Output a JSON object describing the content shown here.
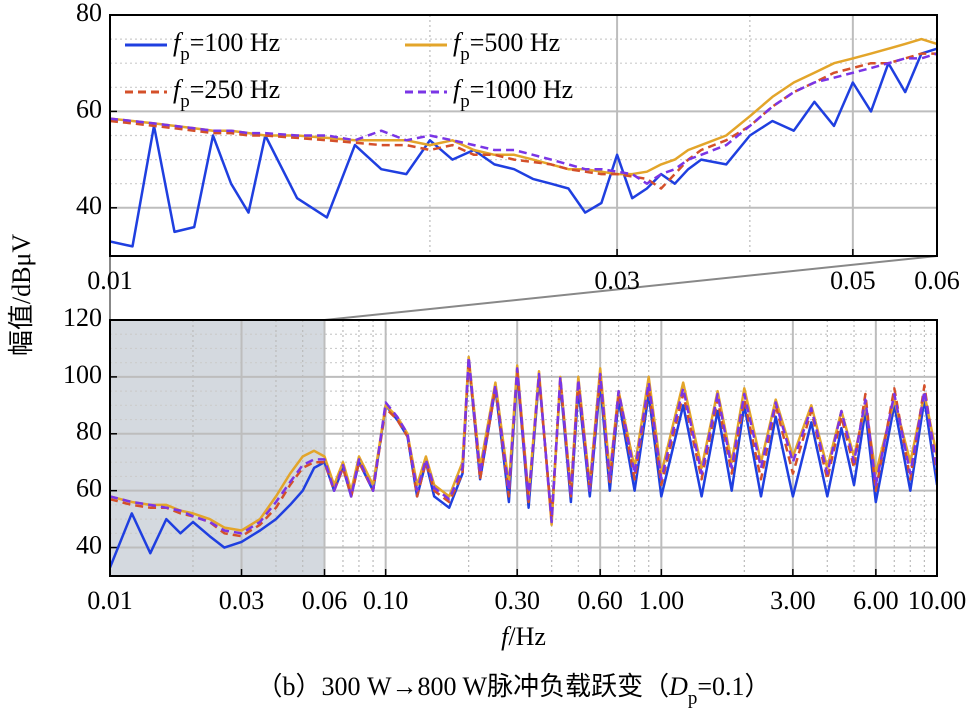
{
  "chart_data": [
    {
      "type": "line",
      "ylabel": "幅值/dBμV",
      "log_x": true,
      "grid": true,
      "legend": "upper left",
      "xlim": [
        0.01,
        0.06
      ],
      "xticks": [
        0.01,
        0.03,
        0.05,
        0.06
      ],
      "ylim": [
        30,
        80
      ],
      "yticks": [
        40,
        60,
        80
      ],
      "x": [
        0.01,
        0.0105,
        0.011,
        0.0115,
        0.012,
        0.0125,
        0.013,
        0.0135,
        0.014,
        0.015,
        0.016,
        0.017,
        0.018,
        0.019,
        0.02,
        0.021,
        0.022,
        0.023,
        0.024,
        0.025,
        0.026,
        0.027,
        0.028,
        0.029,
        0.03,
        0.031,
        0.032,
        0.033,
        0.034,
        0.035,
        0.036,
        0.038,
        0.04,
        0.042,
        0.044,
        0.046,
        0.048,
        0.05,
        0.052,
        0.054,
        0.056,
        0.058,
        0.06
      ],
      "series": [
        {
          "name": "fp=100 Hz",
          "color": "#1f3fe0",
          "dash": false,
          "values": [
            33,
            32,
            57,
            35,
            36,
            55,
            45,
            39,
            55,
            42,
            38,
            53,
            48,
            47,
            54,
            50,
            52,
            49,
            48,
            46,
            45,
            44,
            39,
            41,
            51,
            42,
            44,
            47,
            45,
            48,
            50,
            49,
            55,
            58,
            56,
            62,
            57,
            66,
            60,
            70,
            64,
            72,
            73
          ]
        },
        {
          "name": "fp=500 Hz",
          "color": "#e3a52a",
          "dash": false,
          "values": [
            58.5,
            58,
            57.5,
            57,
            56.5,
            56,
            56,
            55.5,
            55,
            55,
            54.5,
            54,
            54,
            54,
            53,
            54,
            52,
            51,
            51,
            50,
            49,
            48,
            48,
            47.5,
            47,
            47,
            47.5,
            49,
            50,
            52,
            53,
            55,
            59,
            63,
            66,
            68,
            70,
            71,
            72,
            73,
            74,
            75,
            74
          ]
        },
        {
          "name": "fp=250 Hz",
          "color": "#d4502a",
          "dash": true,
          "values": [
            58,
            57.5,
            57,
            56.5,
            56,
            55.5,
            55.5,
            55,
            55,
            54.5,
            54,
            53.5,
            53,
            53,
            52,
            53,
            51,
            51,
            50,
            49.5,
            49,
            48,
            47.5,
            47,
            47,
            46.5,
            46,
            44,
            47,
            50,
            52,
            54,
            57,
            61,
            64,
            66,
            68,
            69,
            70,
            70,
            71,
            72,
            72
          ]
        },
        {
          "name": "fp=1000 Hz",
          "color": "#7a35e6",
          "dash": true,
          "values": [
            58.5,
            58,
            57.5,
            57,
            56.5,
            56,
            56,
            55.5,
            55.5,
            55,
            55,
            54,
            56,
            54,
            55,
            54,
            53,
            52,
            52,
            51,
            50,
            49,
            48,
            48,
            47.5,
            47,
            45,
            47,
            48,
            50,
            51,
            53,
            57,
            61,
            64,
            66,
            67,
            68,
            69,
            70,
            71,
            71,
            72
          ]
        }
      ]
    },
    {
      "type": "line",
      "xlabel": "f/Hz",
      "caption": "（b）300 W→800 W脉冲负载跃变（Dp=0.1）",
      "log_x": true,
      "grid": true,
      "xlim": [
        0.01,
        10
      ],
      "xticks": [
        0.01,
        0.03,
        0.06,
        {
          "value": 0.1,
          "label": "0.10"
        },
        {
          "value": 0.3,
          "label": "0.30"
        },
        {
          "value": 0.6,
          "label": "0.60"
        },
        {
          "value": 1,
          "label": "1.00"
        },
        {
          "value": 3,
          "label": "3.00"
        },
        {
          "value": 6,
          "label": "6.00"
        },
        {
          "value": 10,
          "label": "10.00"
        }
      ],
      "ylim": [
        30,
        120
      ],
      "yticks": [
        40,
        60,
        80,
        100,
        120
      ],
      "x": [
        0.01,
        0.012,
        0.014,
        0.016,
        0.018,
        0.02,
        0.023,
        0.026,
        0.03,
        0.035,
        0.04,
        0.045,
        0.05,
        0.055,
        0.06,
        0.065,
        0.07,
        0.075,
        0.08,
        0.09,
        0.1,
        0.11,
        0.12,
        0.13,
        0.14,
        0.15,
        0.17,
        0.19,
        0.2,
        0.22,
        0.25,
        0.28,
        0.3,
        0.33,
        0.36,
        0.4,
        0.43,
        0.47,
        0.5,
        0.55,
        0.6,
        0.65,
        0.7,
        0.8,
        0.9,
        1,
        1.2,
        1.4,
        1.6,
        1.8,
        2,
        2.3,
        2.6,
        3,
        3.5,
        4,
        4.5,
        5,
        5.5,
        6,
        7,
        8,
        9,
        10
      ],
      "series": [
        {
          "color": "#1f3fe0",
          "dash": false,
          "values": [
            33,
            52,
            38,
            50,
            45,
            49,
            44,
            40,
            42,
            46,
            50,
            55,
            60,
            68,
            70,
            60,
            68,
            58,
            70,
            60,
            90,
            85,
            79,
            58,
            70,
            58,
            54,
            66,
            106,
            64,
            96,
            56,
            102,
            54,
            100,
            50,
            98,
            56,
            96,
            58,
            98,
            60,
            92,
            60,
            94,
            58,
            90,
            58,
            88,
            60,
            90,
            58,
            86,
            58,
            84,
            58,
            82,
            62,
            88,
            56,
            90,
            60,
            92,
            62
          ]
        },
        {
          "color": "#e3a52a",
          "dash": false,
          "values": [
            58,
            56,
            55,
            55,
            53,
            52,
            50,
            47,
            46,
            50,
            58,
            66,
            72,
            74,
            72,
            62,
            70,
            60,
            72,
            62,
            90,
            86,
            80,
            62,
            72,
            62,
            58,
            70,
            107,
            68,
            98,
            62,
            104,
            58,
            102,
            48,
            100,
            60,
            100,
            62,
            103,
            66,
            95,
            68,
            100,
            66,
            98,
            68,
            95,
            70,
            96,
            70,
            92,
            72,
            90,
            68,
            88,
            72,
            90,
            66,
            92,
            70,
            94,
            72
          ]
        },
        {
          "color": "#d4502a",
          "dash": true,
          "values": [
            57,
            55,
            54,
            54,
            52,
            51,
            49,
            45,
            44,
            48,
            54,
            62,
            68,
            70,
            70,
            60,
            68,
            58,
            70,
            60,
            89,
            85,
            79,
            58,
            70,
            60,
            56,
            66,
            106,
            64,
            96,
            58,
            102,
            56,
            100,
            50,
            99,
            58,
            98,
            60,
            100,
            62,
            94,
            64,
            96,
            62,
            94,
            64,
            92,
            66,
            92,
            64,
            90,
            66,
            88,
            64,
            86,
            68,
            94,
            60,
            96,
            64,
            97,
            66
          ]
        },
        {
          "color": "#7a35e6",
          "dash": true,
          "values": [
            58,
            56,
            55,
            54,
            53,
            51,
            49,
            46,
            45,
            49,
            56,
            63,
            69,
            71,
            71,
            60,
            69,
            58,
            71,
            60,
            91,
            86,
            80,
            60,
            71,
            61,
            57,
            68,
            107,
            66,
            97,
            60,
            103,
            57,
            101,
            49,
            100,
            58,
            99,
            60,
            101,
            64,
            95,
            66,
            98,
            64,
            96,
            66,
            94,
            68,
            94,
            68,
            91,
            70,
            89,
            66,
            88,
            70,
            92,
            62,
            94,
            66,
            95,
            68
          ]
        }
      ]
    }
  ]
}
